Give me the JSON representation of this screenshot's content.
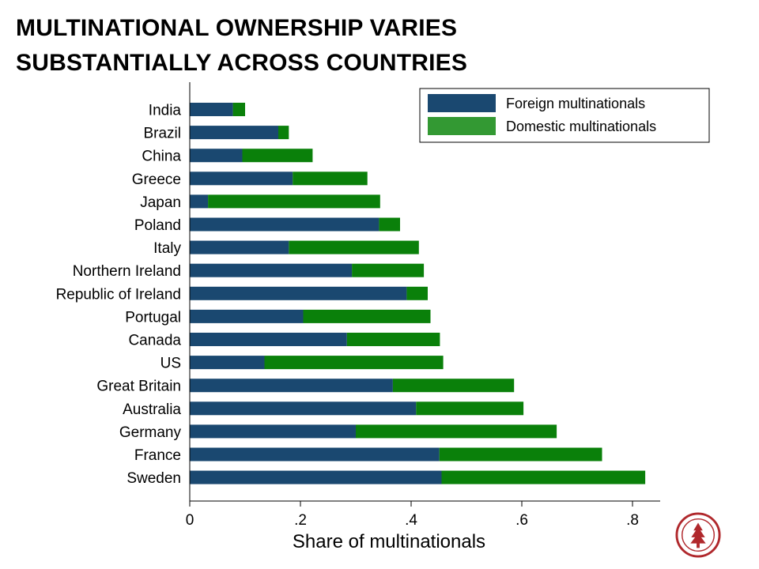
{
  "title": {
    "line1": "MULTINATIONAL OWNERSHIP VARIES",
    "line2": "SUBSTANTIALLY ACROSS COUNTRIES"
  },
  "colors": {
    "foreign": "#1a4870",
    "domestic": "#0a800a",
    "legend_domestic": "#339933",
    "seal": "#b0282c"
  },
  "logo": {
    "icon": "university-seal-icon"
  },
  "chart_data": {
    "type": "bar",
    "orientation": "horizontal",
    "stacked": true,
    "xlabel": "Share of multinationals",
    "ylabel": "",
    "xlim": [
      0,
      0.85
    ],
    "x_ticks": [
      0,
      0.2,
      0.4,
      0.6,
      0.8
    ],
    "x_tick_labels": [
      "0",
      ".2",
      ".4",
      ".6",
      ".8"
    ],
    "grid": false,
    "legend_position": "top-right",
    "categories": [
      "India",
      "Brazil",
      "China",
      "Greece",
      "Japan",
      "Poland",
      "Italy",
      "Northern Ireland",
      "Republic of Ireland",
      "Portugal",
      "Canada",
      "US",
      "Great Britain",
      "Australia",
      "Germany",
      "France",
      "Sweden"
    ],
    "series": [
      {
        "name": "Foreign multinationals",
        "values": [
          0.078,
          0.16,
          0.095,
          0.186,
          0.033,
          0.342,
          0.179,
          0.293,
          0.392,
          0.205,
          0.284,
          0.135,
          0.367,
          0.409,
          0.3,
          0.451,
          0.455
        ]
      },
      {
        "name": "Domestic multinationals",
        "values": [
          0.022,
          0.019,
          0.127,
          0.135,
          0.311,
          0.038,
          0.235,
          0.13,
          0.038,
          0.23,
          0.168,
          0.323,
          0.219,
          0.194,
          0.363,
          0.294,
          0.368
        ]
      }
    ]
  }
}
